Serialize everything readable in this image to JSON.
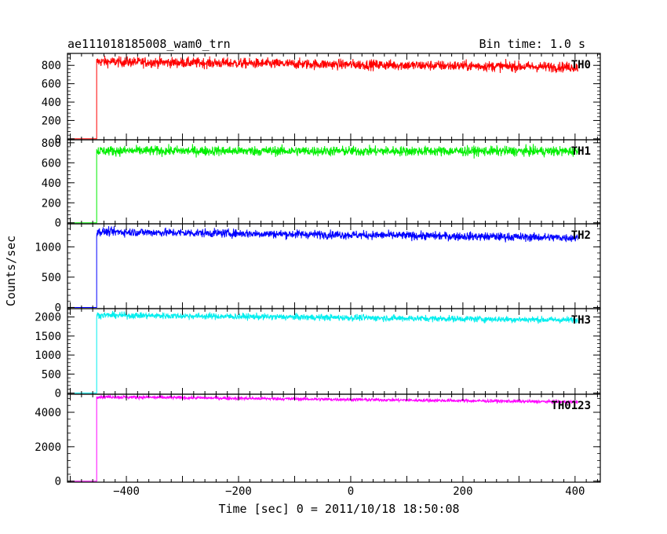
{
  "header": {
    "title": "ae111018185008_wam0_trn",
    "bin_time": "Bin time: 1.0 s"
  },
  "chart_data": {
    "type": "line",
    "title": "ae111018185008_wam0_trn",
    "xlabel": "Time [sec] 0 = 2011/10/18 18:50:08",
    "ylabel": "Counts/sec",
    "xlim": [
      -505,
      445
    ],
    "x_ticks": [
      -400,
      -200,
      0,
      200,
      400
    ],
    "x_tick_labels": [
      "−400",
      "−200",
      "0",
      "200",
      "400"
    ],
    "onset_x": -453,
    "start_x": -500,
    "end_x": 405,
    "panels": [
      {
        "name": "TH0",
        "color": "#ff0000",
        "ylim": [
          -10,
          930
        ],
        "ticks": [
          0,
          200,
          400,
          600,
          800
        ],
        "tick_labels": [
          "0",
          "200",
          "400",
          "600",
          "800"
        ],
        "pre_level": 0,
        "level_start": 840,
        "level_end": 780,
        "noise": 40
      },
      {
        "name": "TH1",
        "color": "#00ee00",
        "ylim": [
          -10,
          830
        ],
        "ticks": [
          0,
          200,
          400,
          600,
          800
        ],
        "tick_labels": [
          "0",
          "200",
          "400",
          "600",
          "800"
        ],
        "pre_level": 0,
        "level_start": 720,
        "level_end": 715,
        "noise": 35
      },
      {
        "name": "TH2",
        "color": "#0000ff",
        "ylim": [
          -20,
          1380
        ],
        "ticks": [
          0,
          500,
          1000
        ],
        "tick_labels": [
          "0",
          "500",
          "1000"
        ],
        "pre_level": 0,
        "level_start": 1250,
        "level_end": 1150,
        "noise": 50
      },
      {
        "name": "TH3",
        "color": "#00eeee",
        "ylim": [
          -30,
          2220
        ],
        "ticks": [
          0,
          500,
          1000,
          1500,
          2000
        ],
        "tick_labels": [
          "0",
          "500",
          "1000",
          "1500",
          "2000"
        ],
        "pre_level": 0,
        "level_start": 2050,
        "level_end": 1920,
        "noise": 60
      },
      {
        "name": "TH0123",
        "color": "#ff00ff",
        "ylim": [
          -60,
          5050
        ],
        "ticks": [
          0,
          2000,
          4000
        ],
        "tick_labels": [
          "0",
          "2000",
          "4000"
        ],
        "pre_level": 0,
        "level_start": 4900,
        "level_end": 4600,
        "noise": 70
      }
    ]
  }
}
